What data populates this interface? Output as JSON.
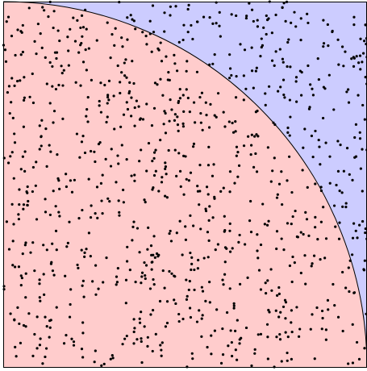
{
  "figure": {
    "description_type": "monte-carlo-quarter-circle",
    "colors": {
      "inside_region": "#ffcccc",
      "outside_region": "#ccccff",
      "points": "#000000",
      "outline": "#000000"
    }
  },
  "chart_data": {
    "type": "scatter",
    "title": "",
    "xlabel": "",
    "ylabel": "",
    "xlim": [
      0,
      1
    ],
    "ylim": [
      0,
      1
    ],
    "grid": false,
    "legend": "none",
    "regions": [
      {
        "name": "",
        "shape": "quarter-circle",
        "radius": 1,
        "center": [
          0,
          0
        ],
        "color": "#ffcccc"
      },
      {
        "name": "",
        "shape": "square-remainder",
        "color": "#ccccff"
      }
    ],
    "sample": {
      "seed": 20240607,
      "count": 1000,
      "distribution": "uniform",
      "x_range": [
        0,
        1
      ],
      "y_range": [
        0,
        1
      ]
    }
  }
}
